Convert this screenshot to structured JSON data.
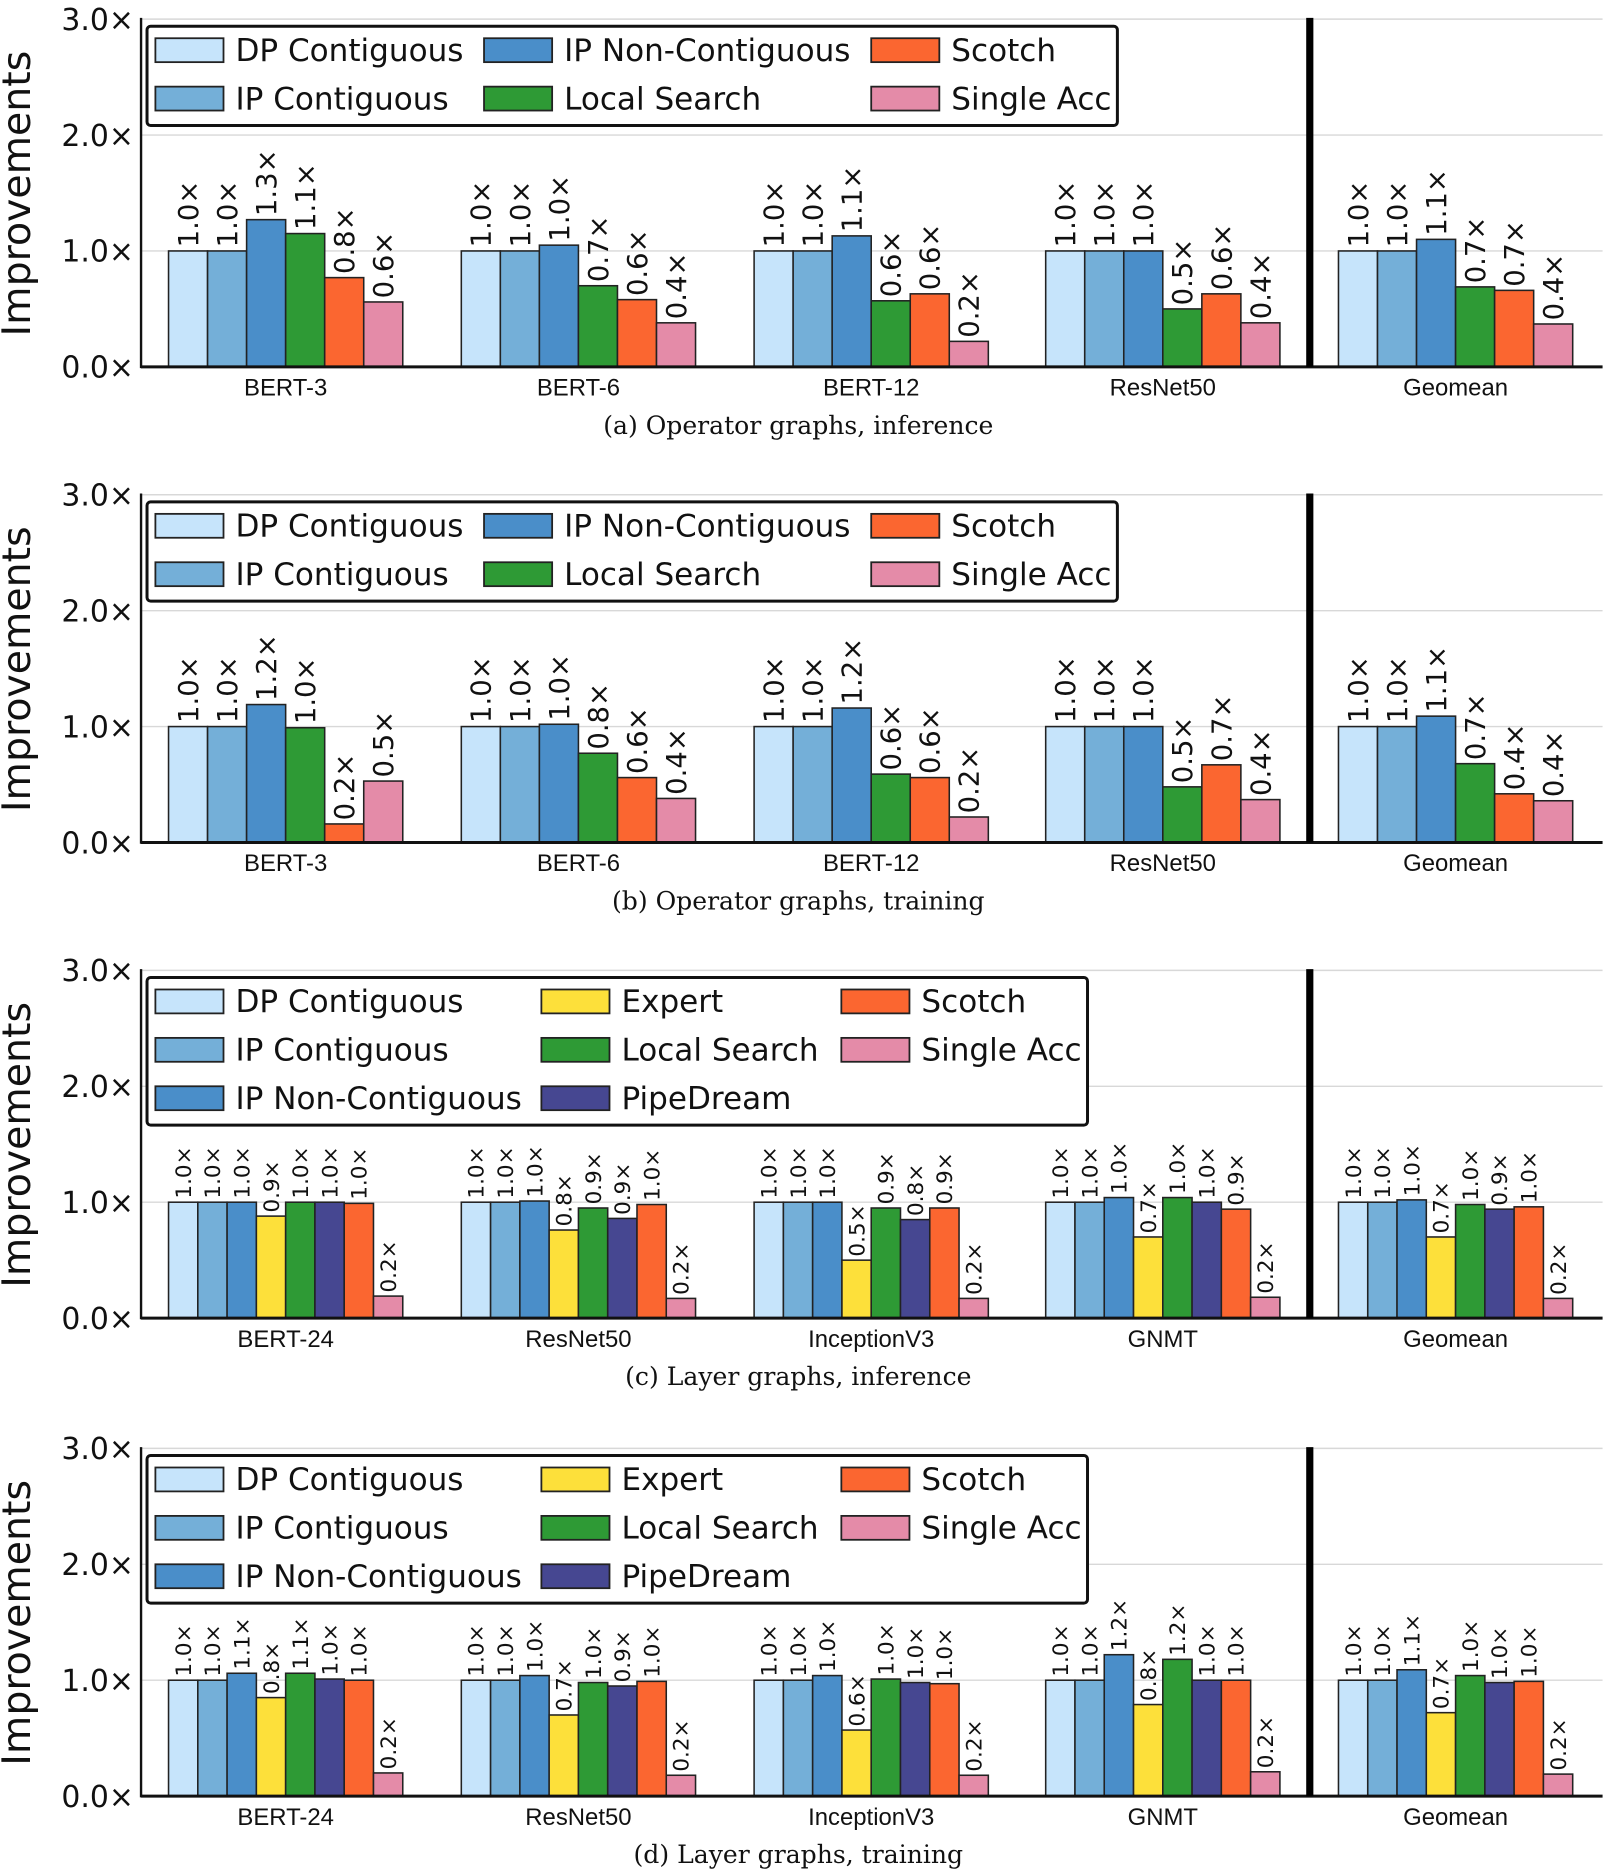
{
  "colors": {
    "DP Contiguous": "#c6e4fb",
    "IP Contiguous": "#74afd8",
    "IP Non-Contiguous": "#4a8ec9",
    "Expert": "#fde03a",
    "Local Search": "#2e9a35",
    "PipeDream": "#464791",
    "Scotch": "#fb6630",
    "Single Acc": "#e48ba8"
  },
  "chart_data": [
    {
      "type": "bar",
      "title": "(a) Operator graphs, inference",
      "ylabel": "Improvements",
      "ylim": [
        0,
        3
      ],
      "yticks": [
        "0.0×",
        "1.0×",
        "2.0×",
        "3.0×"
      ],
      "grid": true,
      "legend": "top-left",
      "legend_columns": [
        [
          "DP Contiguous",
          "IP Contiguous"
        ],
        [
          "IP Non-Contiguous",
          "Local Search"
        ],
        [
          "Scotch",
          "Single Acc"
        ]
      ],
      "categories": [
        "BERT-3",
        "BERT-6",
        "BERT-12",
        "ResNet50",
        "Geomean"
      ],
      "series": [
        {
          "name": "DP Contiguous",
          "values": [
            1.0,
            1.0,
            1.0,
            1.0,
            1.0
          ],
          "labels": [
            "1.0×",
            "1.0×",
            "1.0×",
            "1.0×",
            "1.0×"
          ]
        },
        {
          "name": "IP Contiguous",
          "values": [
            1.0,
            1.0,
            1.0,
            1.0,
            1.0
          ],
          "labels": [
            "1.0×",
            "1.0×",
            "1.0×",
            "1.0×",
            "1.0×"
          ]
        },
        {
          "name": "IP Non-Contiguous",
          "values": [
            1.27,
            1.05,
            1.13,
            1.0,
            1.1
          ],
          "labels": [
            "1.3×",
            "1.0×",
            "1.1×",
            "1.0×",
            "1.1×"
          ]
        },
        {
          "name": "Local Search",
          "values": [
            1.15,
            0.7,
            0.57,
            0.5,
            0.69
          ],
          "labels": [
            "1.1×",
            "0.7×",
            "0.6×",
            "0.5×",
            "0.7×"
          ]
        },
        {
          "name": "Scotch",
          "values": [
            0.77,
            0.58,
            0.63,
            0.63,
            0.66
          ],
          "labels": [
            "0.8×",
            "0.6×",
            "0.6×",
            "0.6×",
            "0.7×"
          ]
        },
        {
          "name": "Single Acc",
          "values": [
            0.56,
            0.38,
            0.22,
            0.38,
            0.37
          ],
          "labels": [
            "0.6×",
            "0.4×",
            "0.2×",
            "0.4×",
            "0.4×"
          ]
        }
      ]
    },
    {
      "type": "bar",
      "title": "(b) Operator graphs, training",
      "ylabel": "Improvements",
      "ylim": [
        0,
        3
      ],
      "yticks": [
        "0.0×",
        "1.0×",
        "2.0×",
        "3.0×"
      ],
      "grid": true,
      "legend": "top-left",
      "legend_columns": [
        [
          "DP Contiguous",
          "IP Contiguous"
        ],
        [
          "IP Non-Contiguous",
          "Local Search"
        ],
        [
          "Scotch",
          "Single Acc"
        ]
      ],
      "categories": [
        "BERT-3",
        "BERT-6",
        "BERT-12",
        "ResNet50",
        "Geomean"
      ],
      "series": [
        {
          "name": "DP Contiguous",
          "values": [
            1.0,
            1.0,
            1.0,
            1.0,
            1.0
          ],
          "labels": [
            "1.0×",
            "1.0×",
            "1.0×",
            "1.0×",
            "1.0×"
          ]
        },
        {
          "name": "IP Contiguous",
          "values": [
            1.0,
            1.0,
            1.0,
            1.0,
            1.0
          ],
          "labels": [
            "1.0×",
            "1.0×",
            "1.0×",
            "1.0×",
            "1.0×"
          ]
        },
        {
          "name": "IP Non-Contiguous",
          "values": [
            1.19,
            1.02,
            1.16,
            1.0,
            1.09
          ],
          "labels": [
            "1.2×",
            "1.0×",
            "1.2×",
            "1.0×",
            "1.1×"
          ]
        },
        {
          "name": "Local Search",
          "values": [
            0.99,
            0.77,
            0.59,
            0.48,
            0.68
          ],
          "labels": [
            "1.0×",
            "0.8×",
            "0.6×",
            "0.5×",
            "0.7×"
          ]
        },
        {
          "name": "Scotch",
          "values": [
            0.16,
            0.56,
            0.56,
            0.67,
            0.42
          ],
          "labels": [
            "0.2×",
            "0.6×",
            "0.6×",
            "0.7×",
            "0.4×"
          ]
        },
        {
          "name": "Single Acc",
          "values": [
            0.53,
            0.38,
            0.22,
            0.37,
            0.36
          ],
          "labels": [
            "0.5×",
            "0.4×",
            "0.2×",
            "0.4×",
            "0.4×"
          ]
        }
      ]
    },
    {
      "type": "bar",
      "title": "(c) Layer graphs, inference",
      "ylabel": "Improvements",
      "ylim": [
        0,
        3
      ],
      "yticks": [
        "0.0×",
        "1.0×",
        "2.0×",
        "3.0×"
      ],
      "grid": true,
      "legend": "top-left",
      "legend_columns": [
        [
          "DP Contiguous",
          "IP Contiguous",
          "IP Non-Contiguous"
        ],
        [
          "Expert",
          "Local Search",
          "PipeDream"
        ],
        [
          "Scotch",
          "Single Acc"
        ]
      ],
      "categories": [
        "BERT-24",
        "ResNet50",
        "InceptionV3",
        "GNMT",
        "Geomean"
      ],
      "series": [
        {
          "name": "DP Contiguous",
          "values": [
            1.0,
            1.0,
            1.0,
            1.0,
            1.0
          ],
          "labels": [
            "1.0×",
            "1.0×",
            "1.0×",
            "1.0×",
            "1.0×"
          ]
        },
        {
          "name": "IP Contiguous",
          "values": [
            1.0,
            1.0,
            1.0,
            1.0,
            1.0
          ],
          "labels": [
            "1.0×",
            "1.0×",
            "1.0×",
            "1.0×",
            "1.0×"
          ]
        },
        {
          "name": "IP Non-Contiguous",
          "values": [
            1.0,
            1.01,
            1.0,
            1.04,
            1.02
          ],
          "labels": [
            "1.0×",
            "1.0×",
            "1.0×",
            "1.0×",
            "1.0×"
          ]
        },
        {
          "name": "Expert",
          "values": [
            0.88,
            0.76,
            0.5,
            0.7,
            0.7
          ],
          "labels": [
            "0.9×",
            "0.8×",
            "0.5×",
            "0.7×",
            "0.7×"
          ]
        },
        {
          "name": "Local Search",
          "values": [
            1.0,
            0.95,
            0.95,
            1.04,
            0.98
          ],
          "labels": [
            "1.0×",
            "0.9×",
            "0.9×",
            "1.0×",
            "1.0×"
          ]
        },
        {
          "name": "PipeDream",
          "values": [
            1.0,
            0.86,
            0.85,
            1.0,
            0.94
          ],
          "labels": [
            "1.0×",
            "0.9×",
            "0.8×",
            "1.0×",
            "0.9×"
          ]
        },
        {
          "name": "Scotch",
          "values": [
            0.99,
            0.98,
            0.95,
            0.94,
            0.96
          ],
          "labels": [
            "1.0×",
            "1.0×",
            "0.9×",
            "0.9×",
            "1.0×"
          ]
        },
        {
          "name": "Single Acc",
          "values": [
            0.19,
            0.17,
            0.17,
            0.18,
            0.17
          ],
          "labels": [
            "0.2×",
            "0.2×",
            "0.2×",
            "0.2×",
            "0.2×"
          ]
        }
      ]
    },
    {
      "type": "bar",
      "title": "(d) Layer graphs, training",
      "ylabel": "Improvements",
      "ylim": [
        0,
        3
      ],
      "yticks": [
        "0.0×",
        "1.0×",
        "2.0×",
        "3.0×"
      ],
      "grid": true,
      "legend": "top-left",
      "legend_columns": [
        [
          "DP Contiguous",
          "IP Contiguous",
          "IP Non-Contiguous"
        ],
        [
          "Expert",
          "Local Search",
          "PipeDream"
        ],
        [
          "Scotch",
          "Single Acc"
        ]
      ],
      "categories": [
        "BERT-24",
        "ResNet50",
        "InceptionV3",
        "GNMT",
        "Geomean"
      ],
      "series": [
        {
          "name": "DP Contiguous",
          "values": [
            1.0,
            1.0,
            1.0,
            1.0,
            1.0
          ],
          "labels": [
            "1.0×",
            "1.0×",
            "1.0×",
            "1.0×",
            "1.0×"
          ]
        },
        {
          "name": "IP Contiguous",
          "values": [
            1.0,
            1.0,
            1.0,
            1.0,
            1.0
          ],
          "labels": [
            "1.0×",
            "1.0×",
            "1.0×",
            "1.0×",
            "1.0×"
          ]
        },
        {
          "name": "IP Non-Contiguous",
          "values": [
            1.06,
            1.04,
            1.04,
            1.22,
            1.09
          ],
          "labels": [
            "1.1×",
            "1.0×",
            "1.0×",
            "1.2×",
            "1.1×"
          ]
        },
        {
          "name": "Expert",
          "values": [
            0.85,
            0.7,
            0.57,
            0.79,
            0.72
          ],
          "labels": [
            "0.8×",
            "0.7×",
            "0.6×",
            "0.8×",
            "0.7×"
          ]
        },
        {
          "name": "Local Search",
          "values": [
            1.06,
            0.98,
            1.01,
            1.18,
            1.04
          ],
          "labels": [
            "1.1×",
            "1.0×",
            "1.0×",
            "1.2×",
            "1.0×"
          ]
        },
        {
          "name": "PipeDream",
          "values": [
            1.01,
            0.95,
            0.98,
            1.0,
            0.98
          ],
          "labels": [
            "1.0×",
            "0.9×",
            "1.0×",
            "1.0×",
            "1.0×"
          ]
        },
        {
          "name": "Scotch",
          "values": [
            1.0,
            0.99,
            0.97,
            1.0,
            0.99
          ],
          "labels": [
            "1.0×",
            "1.0×",
            "1.0×",
            "1.0×",
            "1.0×"
          ]
        },
        {
          "name": "Single Acc",
          "values": [
            0.2,
            0.18,
            0.18,
            0.21,
            0.19
          ],
          "labels": [
            "0.2×",
            "0.2×",
            "0.2×",
            "0.2×",
            "0.2×"
          ]
        }
      ]
    }
  ]
}
